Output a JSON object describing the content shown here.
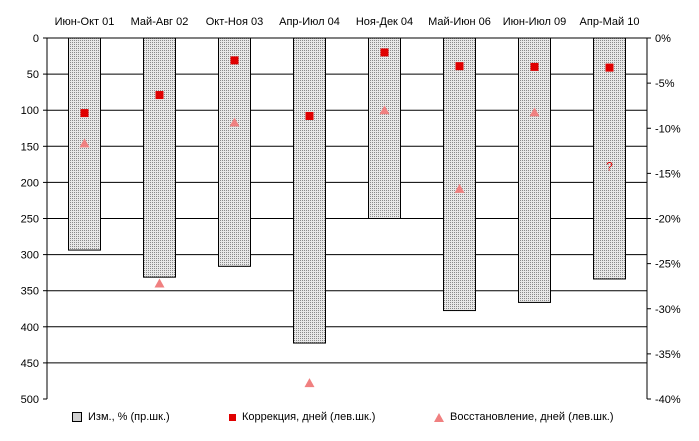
{
  "chart_data": {
    "type": "bar",
    "categories": [
      "Июн-Окт 01",
      "Май-Авг 02",
      "Окт-Ноя 03",
      "Апр-Июл 04",
      "Ноя-Дек 04",
      "Май-Июн 06",
      "Июн-Июл 09",
      "Апр-Май 10"
    ],
    "series": [
      {
        "name": "Изм., % (пр.шк.)",
        "type": "bar",
        "axis": "right",
        "values": [
          -23.5,
          -26.5,
          -25.3,
          -33.8,
          -20.0,
          -30.2,
          -29.3,
          -26.7
        ]
      },
      {
        "name": "Коррекция, дней (лев.шк.)",
        "type": "marker",
        "marker": "square",
        "axis": "left",
        "values": [
          104,
          79,
          31,
          108,
          20,
          39,
          40,
          41
        ]
      },
      {
        "name": "Восстановление, дней (лев.шк.)",
        "type": "marker",
        "marker": "triangle",
        "axis": "left",
        "values": [
          146,
          340,
          117,
          478,
          100,
          209,
          103,
          null
        ]
      }
    ],
    "annotations": [
      {
        "category": "Апр-Май 10",
        "text": "?",
        "value": 178
      }
    ],
    "left_axis": {
      "ylim": [
        0,
        500
      ],
      "inverted": true,
      "ticks": [
        "0",
        "50",
        "100",
        "150",
        "200",
        "250",
        "300",
        "350",
        "400",
        "450",
        "500"
      ]
    },
    "right_axis": {
      "ylim": [
        0,
        -40
      ],
      "ticks": [
        "0%",
        "-5%",
        "-10%",
        "-15%",
        "-20%",
        "-25%",
        "-30%",
        "-35%",
        "-40%"
      ]
    },
    "grid": true,
    "legend_position": "bottom",
    "colors": {
      "bar_fill": "#e8e8e8",
      "bar_dots": "#8a8a8a",
      "square": "#e00000",
      "triangle": "#f08080",
      "annotation": "#e00000"
    }
  }
}
